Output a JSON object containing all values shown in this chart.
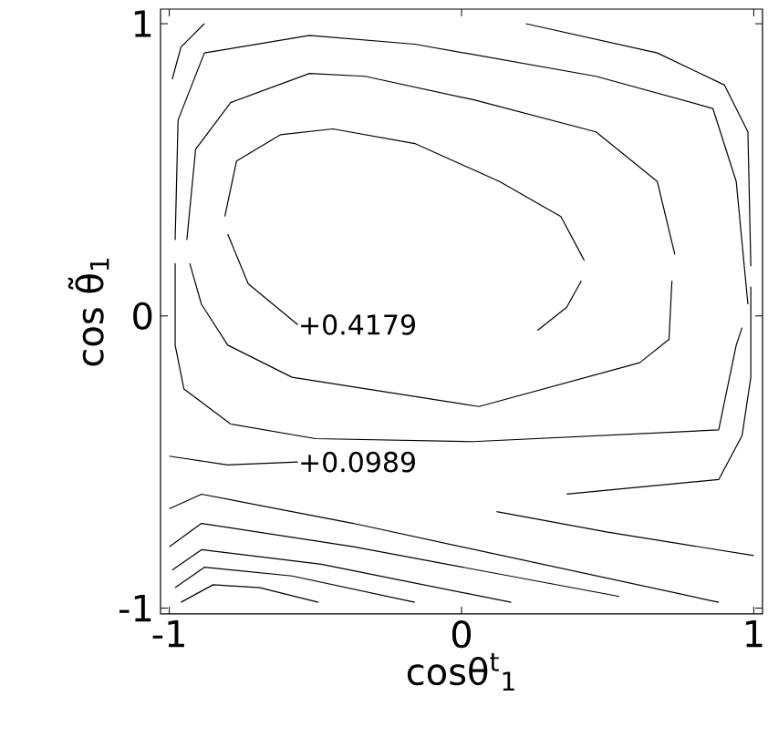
{
  "chart_data": {
    "type": "line",
    "xlabel": "cosθ$^{t}$$_{1}$",
    "ylabel": "cos θ̃$_{1}$",
    "xlim": [
      -1.03,
      1.03
    ],
    "ylim": [
      -1.02,
      1.05
    ],
    "xticks": [
      -1,
      0,
      1
    ],
    "yticks": [
      -1,
      0,
      1
    ],
    "grid": false,
    "marker": "none",
    "line_style": "solid",
    "annotations": [
      {
        "text": "+0.4179",
        "x": -0.56,
        "y": -0.03
      },
      {
        "text": "+0.0989",
        "x": -0.56,
        "y": -0.5
      }
    ],
    "series": [
      {
        "color": "#000000",
        "x": [
          -0.8,
          -0.73,
          -0.56
        ],
        "values": [
          0.28,
          0.11,
          -0.03
        ]
      },
      {
        "color": "#000000",
        "x": [
          -0.81,
          -0.77,
          -0.62,
          -0.44,
          -0.16,
          0.13,
          0.34,
          0.42
        ],
        "values": [
          0.34,
          0.53,
          0.62,
          0.64,
          0.59,
          0.46,
          0.34,
          0.19
        ]
      },
      {
        "color": "#000000",
        "x": [
          0.26,
          0.36,
          0.41
        ],
        "values": [
          -0.05,
          0.03,
          0.12
        ]
      },
      {
        "color": "#000000",
        "x": [
          -0.94,
          -0.91,
          -0.79,
          -0.52,
          -0.33,
          0.04,
          0.46,
          0.67,
          0.73
        ],
        "values": [
          0.26,
          0.57,
          0.73,
          0.83,
          0.82,
          0.74,
          0.63,
          0.46,
          0.21
        ]
      },
      {
        "color": "#000000",
        "x": [
          -0.93,
          -0.89,
          -0.8,
          -0.58,
          0.06,
          0.61,
          0.71,
          0.72
        ],
        "values": [
          0.18,
          0.04,
          -0.1,
          -0.21,
          -0.31,
          -0.16,
          -0.08,
          0.12
        ]
      },
      {
        "color": "#000000",
        "x": [
          -0.98,
          -0.97,
          -0.88,
          -0.52,
          -0.16,
          0.46,
          0.86,
          0.94,
          0.98
        ],
        "values": [
          0.26,
          0.67,
          0.9,
          0.96,
          0.93,
          0.82,
          0.71,
          0.46,
          0.04
        ]
      },
      {
        "color": "#000000",
        "x": [
          -0.98,
          -0.98,
          -0.95,
          -0.79,
          -0.5,
          0.04,
          0.88,
          0.94,
          0.96
        ],
        "values": [
          0.18,
          -0.1,
          -0.25,
          -0.37,
          -0.42,
          -0.43,
          -0.39,
          -0.1,
          -0.04
        ]
      },
      {
        "color": "#000000",
        "x": [
          -0.99,
          -0.96,
          -0.88
        ],
        "values": [
          0.81,
          0.92,
          1.0
        ]
      },
      {
        "color": "#000000",
        "x": [
          0.22,
          0.67,
          0.9,
          0.98,
          0.99
        ],
        "values": [
          1.0,
          0.9,
          0.79,
          0.63,
          0.17
        ]
      },
      {
        "color": "#000000",
        "x": [
          0.36,
          0.88,
          0.96,
          0.99,
          0.99
        ],
        "values": [
          -0.61,
          -0.56,
          -0.41,
          -0.21,
          0.1
        ]
      },
      {
        "color": "#000000",
        "x": [
          -1.0,
          -0.8,
          -0.56
        ],
        "values": [
          -0.48,
          -0.51,
          -0.5
        ]
      },
      {
        "color": "#000000",
        "x": [
          0.12,
          0.5,
          1.0
        ],
        "values": [
          -0.67,
          -0.74,
          -0.82
        ]
      },
      {
        "color": "#000000",
        "x": [
          -1.0,
          -0.89,
          -0.37,
          0.88
        ],
        "values": [
          -0.66,
          -0.61,
          -0.71,
          -0.98
        ]
      },
      {
        "color": "#000000",
        "x": [
          -1.0,
          -0.89,
          -0.37,
          0.54
        ],
        "values": [
          -0.79,
          -0.71,
          -0.79,
          -0.96
        ]
      },
      {
        "color": "#000000",
        "x": [
          -0.99,
          -0.89,
          -0.48,
          0.17
        ],
        "values": [
          -0.87,
          -0.8,
          -0.85,
          -0.98
        ]
      },
      {
        "color": "#000000",
        "x": [
          -0.98,
          -0.88,
          -0.58,
          -0.16
        ],
        "values": [
          -0.93,
          -0.86,
          -0.89,
          -0.98
        ]
      },
      {
        "color": "#000000",
        "x": [
          -0.96,
          -0.85,
          -0.69,
          -0.49
        ],
        "values": [
          -0.98,
          -0.92,
          -0.93,
          -0.98
        ]
      }
    ]
  }
}
